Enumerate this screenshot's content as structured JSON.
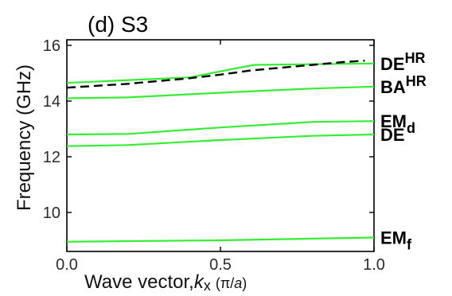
{
  "chart_data": {
    "type": "line",
    "title": "(d) S3",
    "xlabel": "Wave vector,",
    "xlabel_symbol": "k",
    "xlabel_subscript": "x",
    "xlabel_unit_open": "(",
    "xlabel_unit_pi": "π",
    "xlabel_unit_slash": "/",
    "xlabel_unit_a": "a",
    "xlabel_unit_close": ")",
    "ylabel": "Frequency (GHz)",
    "xlim": [
      0.0,
      1.0
    ],
    "ylim": [
      8.6,
      16.2
    ],
    "xticks": [
      0.0,
      0.5,
      1.0
    ],
    "xtick_labels": [
      "0.0",
      "0.5",
      "1.0"
    ],
    "yticks": [
      10,
      12,
      14,
      16
    ],
    "ytick_labels": [
      "10",
      "12",
      "14",
      "16"
    ],
    "grid": false,
    "legend": "none",
    "series": [
      {
        "label_main": "DE",
        "label_sup": "HR",
        "label_sub": "",
        "color": "#33ee33",
        "style": "solid",
        "points": [
          [
            0.0,
            14.65
          ],
          [
            0.4,
            14.85
          ],
          [
            0.61,
            15.3
          ],
          [
            1.0,
            15.35
          ]
        ]
      },
      {
        "label_main": "",
        "label_sup": "",
        "label_sub": "",
        "color": "#000000",
        "style": "dashed",
        "points": [
          [
            0.0,
            14.48
          ],
          [
            0.2,
            14.62
          ],
          [
            0.4,
            14.82
          ],
          [
            0.5,
            14.95
          ],
          [
            0.6,
            15.1
          ],
          [
            0.7,
            15.2
          ],
          [
            0.8,
            15.3
          ],
          [
            0.9,
            15.4
          ],
          [
            0.97,
            15.45
          ]
        ]
      },
      {
        "label_main": "BA",
        "label_sup": "HR",
        "label_sub": "",
        "color": "#33ee33",
        "style": "solid",
        "points": [
          [
            0.0,
            14.1
          ],
          [
            0.2,
            14.13
          ],
          [
            0.5,
            14.3
          ],
          [
            0.8,
            14.45
          ],
          [
            1.0,
            14.52
          ]
        ]
      },
      {
        "label_main": "EM",
        "label_sup": "",
        "label_sub": "d",
        "color": "#33ee33",
        "style": "solid",
        "points": [
          [
            0.0,
            12.8
          ],
          [
            0.2,
            12.82
          ],
          [
            0.5,
            13.05
          ],
          [
            0.8,
            13.25
          ],
          [
            1.0,
            13.28
          ]
        ]
      },
      {
        "label_main": "DE",
        "label_sup": "",
        "label_sub": "",
        "color": "#33ee33",
        "style": "solid",
        "points": [
          [
            0.0,
            12.38
          ],
          [
            0.2,
            12.42
          ],
          [
            0.5,
            12.6
          ],
          [
            0.8,
            12.75
          ],
          [
            1.0,
            12.8
          ]
        ]
      },
      {
        "label_main": "EM",
        "label_sup": "",
        "label_sub": "f",
        "color": "#33ee33",
        "style": "solid",
        "points": [
          [
            0.0,
            8.95
          ],
          [
            0.5,
            9.0
          ],
          [
            1.0,
            9.1
          ]
        ]
      }
    ]
  }
}
